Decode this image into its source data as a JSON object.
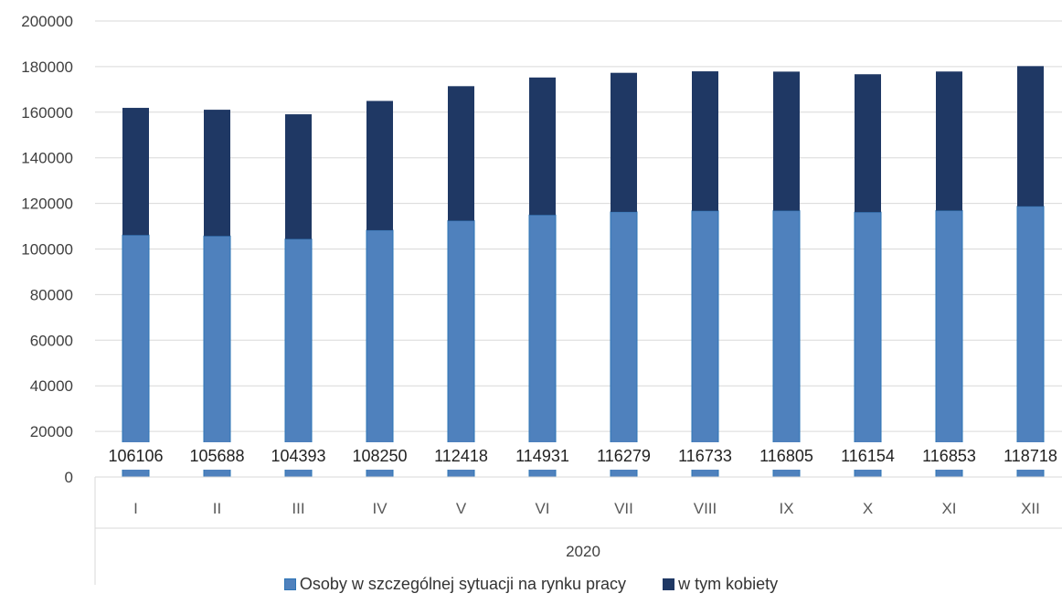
{
  "chart_data": {
    "type": "bar",
    "stacked": true,
    "group_label": "2020",
    "categories": [
      "I",
      "II",
      "III",
      "IV",
      "V",
      "VI",
      "VII",
      "VIII",
      "IX",
      "X",
      "XI",
      "XII"
    ],
    "series": [
      {
        "name": "Osoby w szczególnej sytuacji na rynku pracy",
        "color": "#4f81bd",
        "values": [
          106106,
          105688,
          104393,
          108250,
          112418,
          114931,
          116279,
          116733,
          116805,
          116154,
          116853,
          118718
        ],
        "data_labels": [
          "106106",
          "105688",
          "104393",
          "108250",
          "112418",
          "114931",
          "116279",
          "116733",
          "116805",
          "116154",
          "116853",
          "118718"
        ]
      },
      {
        "name": "w tym kobiety",
        "color": "#1f3864",
        "values": [
          55800,
          55400,
          54700,
          56700,
          59000,
          60300,
          61000,
          61200,
          61000,
          60500,
          61000,
          61500
        ]
      }
    ],
    "ylim": [
      0,
      200000
    ],
    "yticks": [
      "0",
      "20000",
      "40000",
      "60000",
      "80000",
      "100000",
      "120000",
      "140000",
      "160000",
      "180000",
      "200000"
    ],
    "grid": true,
    "legend_position": "bottom"
  }
}
